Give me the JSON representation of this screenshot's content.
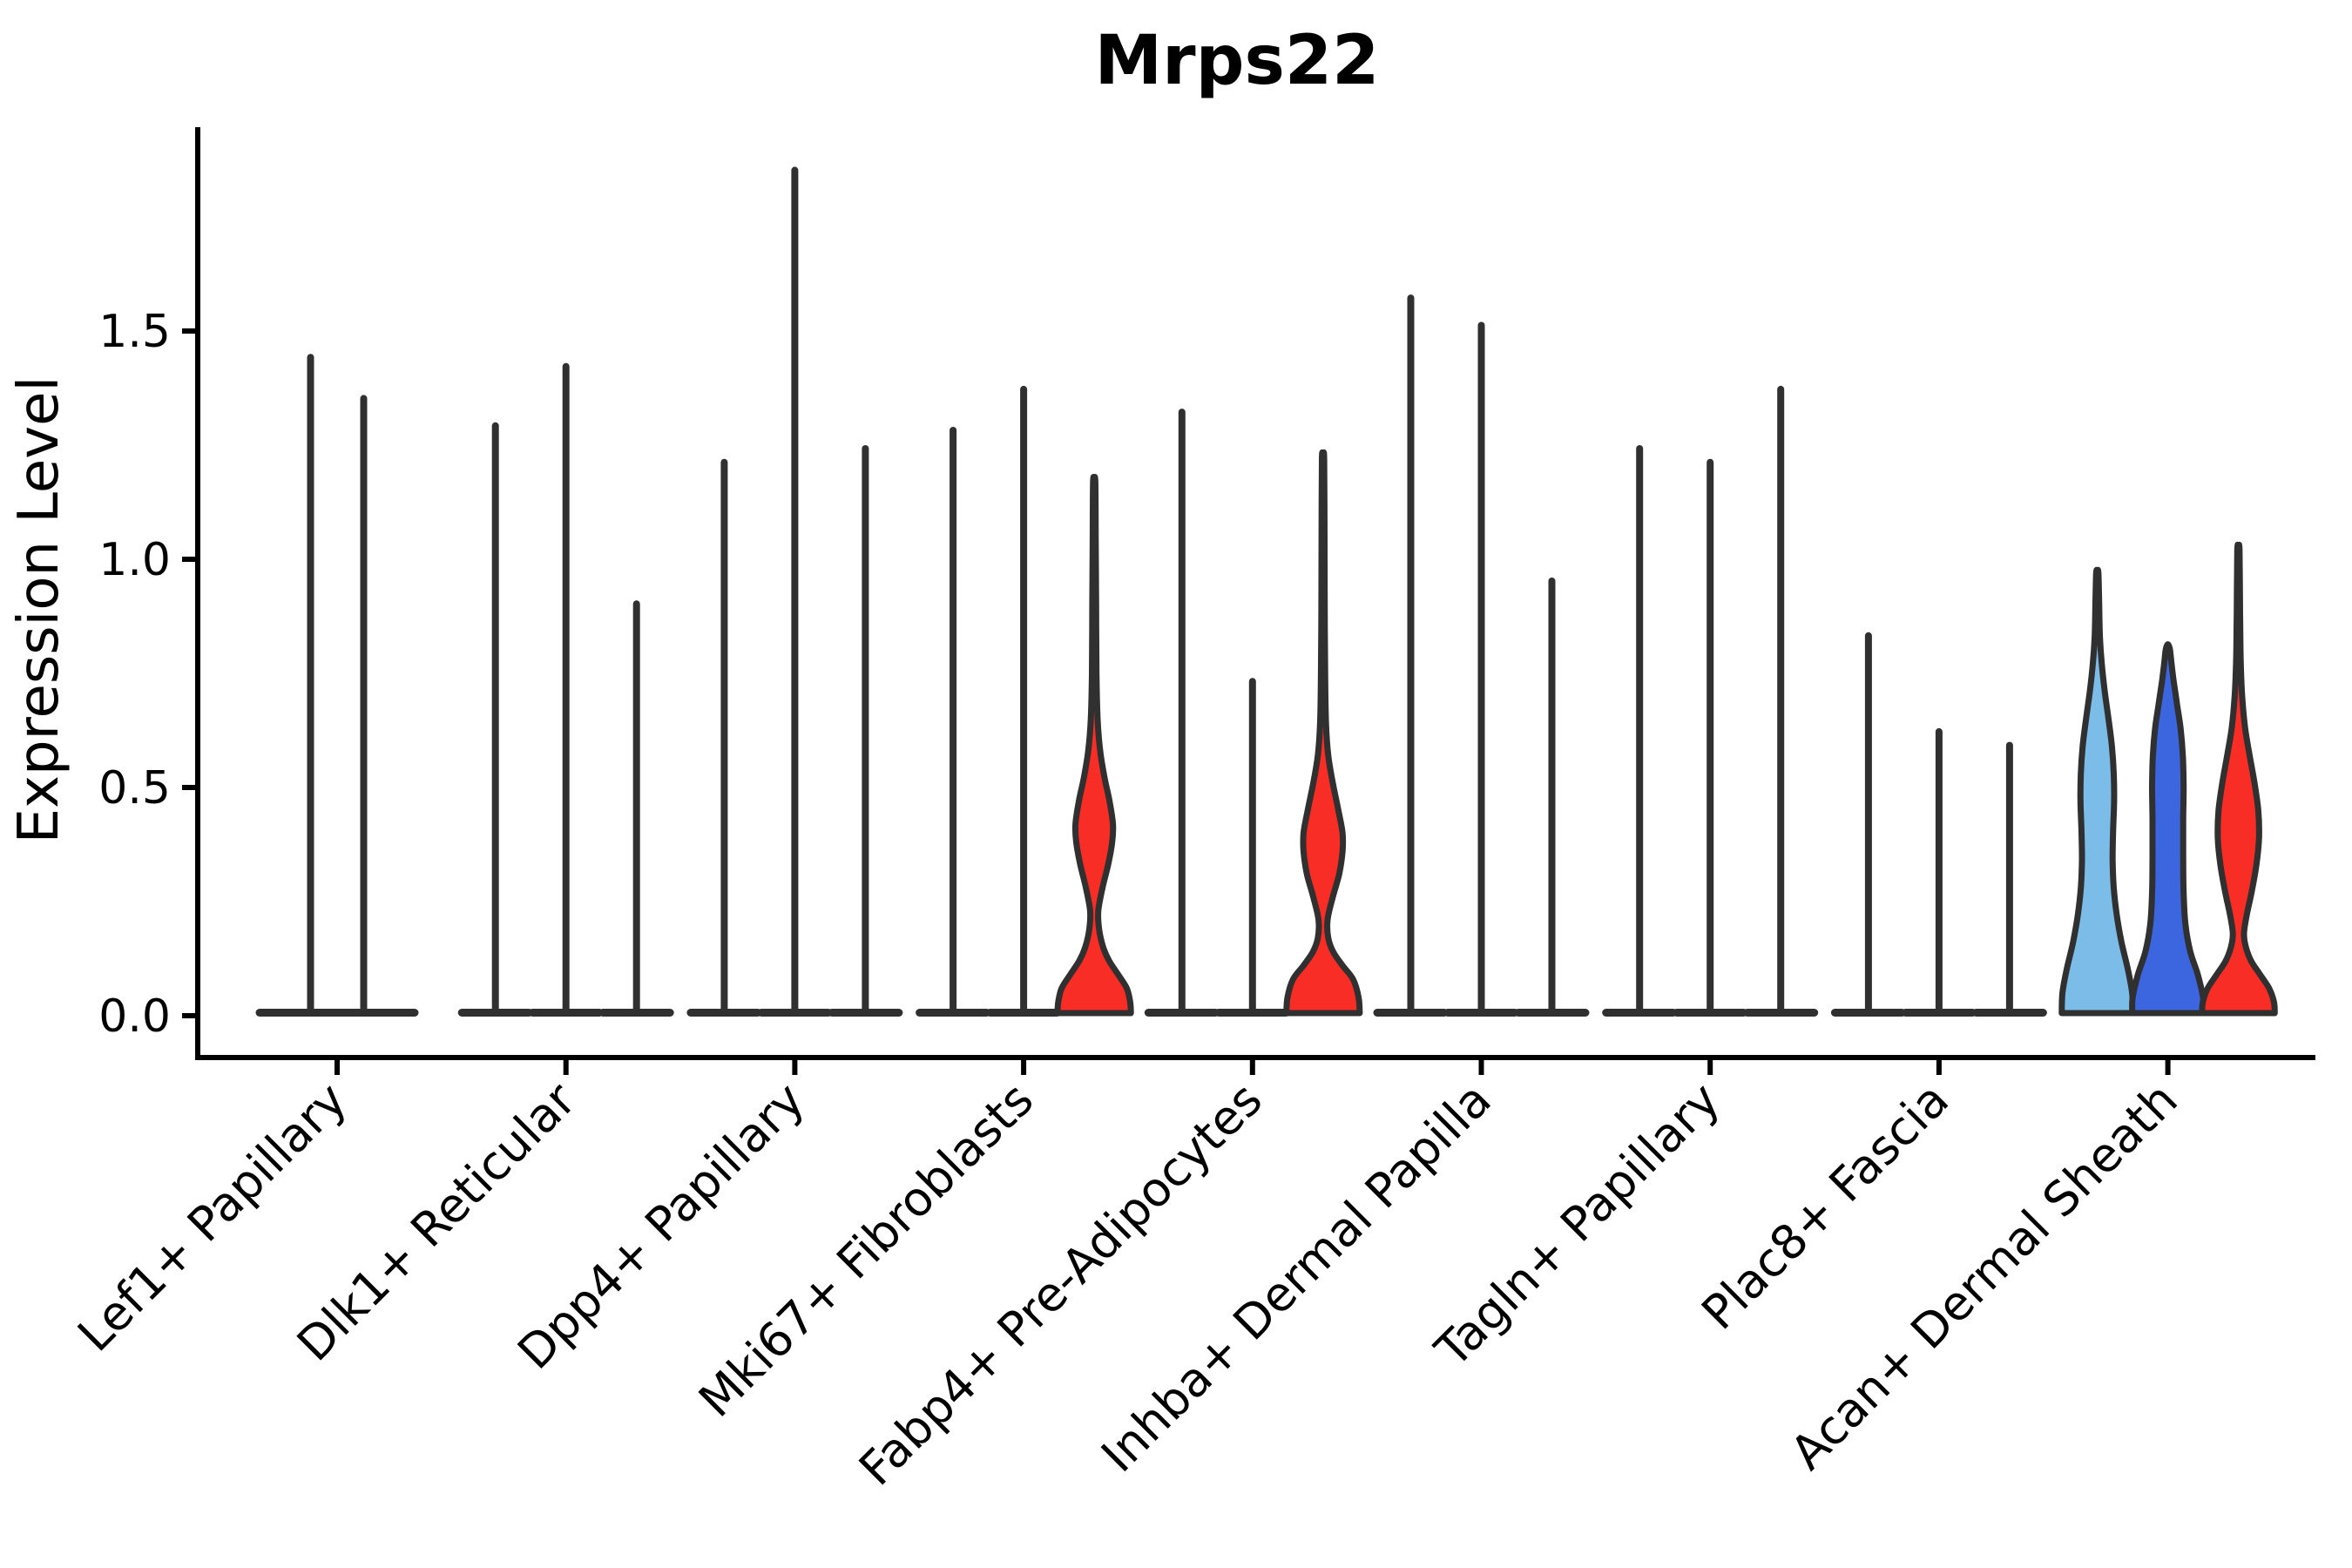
{
  "chart_data": {
    "type": "violin",
    "title": "Mrps22",
    "ylabel": "Expression Level",
    "ytick_labels": [
      "0.0",
      "0.5",
      "1.0",
      "1.5"
    ],
    "yticks": [
      0.0,
      0.5,
      1.0,
      1.5
    ],
    "ylim": [
      0,
      1.95
    ],
    "grid": false,
    "legend": "none",
    "categories": [
      "Lef1+ Papillary",
      "Dlk1+ Reticular",
      "Dpp4+ Papillary",
      "Mki67+ Fibroblasts",
      "Fabp4+ Pre-Adipocytes",
      "Inhba+ Dermal Papilla",
      "Tagln+ Papillary",
      "Plac8+ Fascia",
      "Acan+ Dermal Sheath"
    ],
    "colors": {
      "outline": "#303030",
      "red": "#F72D26",
      "light_blue": "#7CBCE8",
      "dark_blue": "#3B66E0",
      "background": "#FFFFFF",
      "text": "#000000"
    },
    "groups": [
      {
        "category": "Lef1+ Papillary",
        "violins": [
          {
            "shape": "spike",
            "max": 1.45,
            "color": "outline"
          },
          {
            "shape": "spike",
            "max": 1.36,
            "color": "outline"
          }
        ]
      },
      {
        "category": "Dlk1+ Reticular",
        "violins": [
          {
            "shape": "spike",
            "max": 1.3,
            "color": "outline"
          },
          {
            "shape": "spike",
            "max": 1.43,
            "color": "outline"
          },
          {
            "shape": "spike",
            "max": 0.91,
            "color": "outline"
          }
        ]
      },
      {
        "category": "Dpp4+ Papillary",
        "violins": [
          {
            "shape": "spike",
            "max": 1.22,
            "color": "outline"
          },
          {
            "shape": "spike",
            "max": 1.86,
            "color": "outline"
          },
          {
            "shape": "spike",
            "max": 1.25,
            "color": "outline"
          }
        ]
      },
      {
        "category": "Mki67+ Fibroblasts",
        "violins": [
          {
            "shape": "spike",
            "max": 1.29,
            "color": "outline"
          },
          {
            "shape": "spike",
            "max": 1.38,
            "color": "outline"
          },
          {
            "shape": "body",
            "max": 1.17,
            "color": "red",
            "profile": [
              [
                0,
                0.98
              ],
              [
                0.03,
                0.96
              ],
              [
                0.06,
                0.87
              ],
              [
                0.09,
                0.64
              ],
              [
                0.12,
                0.4
              ],
              [
                0.15,
                0.24
              ],
              [
                0.19,
                0.13
              ],
              [
                0.23,
                0.11
              ],
              [
                0.28,
                0.22
              ],
              [
                0.33,
                0.37
              ],
              [
                0.38,
                0.48
              ],
              [
                0.42,
                0.5
              ],
              [
                0.47,
                0.41
              ],
              [
                0.52,
                0.28
              ],
              [
                0.58,
                0.16
              ],
              [
                0.65,
                0.09
              ],
              [
                0.75,
                0.06
              ],
              [
                0.9,
                0.05
              ],
              [
                1.05,
                0.04
              ],
              [
                1.17,
                0.03
              ]
            ]
          }
        ]
      },
      {
        "category": "Fabp4+ Pre-Adipocytes",
        "violins": [
          {
            "shape": "spike",
            "max": 1.33,
            "color": "outline"
          },
          {
            "shape": "spike",
            "max": 0.74,
            "color": "outline"
          },
          {
            "shape": "body",
            "max": 1.22,
            "color": "red",
            "profile": [
              [
                0,
                0.98
              ],
              [
                0.04,
                0.95
              ],
              [
                0.08,
                0.8
              ],
              [
                0.11,
                0.52
              ],
              [
                0.14,
                0.27
              ],
              [
                0.17,
                0.14
              ],
              [
                0.21,
                0.12
              ],
              [
                0.26,
                0.26
              ],
              [
                0.31,
                0.43
              ],
              [
                0.36,
                0.52
              ],
              [
                0.4,
                0.52
              ],
              [
                0.45,
                0.41
              ],
              [
                0.51,
                0.26
              ],
              [
                0.57,
                0.14
              ],
              [
                0.64,
                0.08
              ],
              [
                0.75,
                0.055
              ],
              [
                0.9,
                0.045
              ],
              [
                1.05,
                0.04
              ],
              [
                1.22,
                0.03
              ]
            ]
          }
        ]
      },
      {
        "category": "Inhba+ Dermal Papilla",
        "violins": [
          {
            "shape": "spike",
            "max": 1.58,
            "color": "outline"
          },
          {
            "shape": "spike",
            "max": 1.52,
            "color": "outline"
          },
          {
            "shape": "spike",
            "max": 0.96,
            "color": "outline"
          }
        ]
      },
      {
        "category": "Tagln+ Papillary",
        "violins": [
          {
            "shape": "spike",
            "max": 1.25,
            "color": "outline"
          },
          {
            "shape": "spike",
            "max": 1.22,
            "color": "outline"
          },
          {
            "shape": "spike",
            "max": 1.38,
            "color": "outline"
          }
        ]
      },
      {
        "category": "Plac8+ Fascia",
        "violins": [
          {
            "shape": "spike",
            "max": 0.84,
            "color": "outline"
          },
          {
            "shape": "spike",
            "max": 0.63,
            "color": "outline"
          },
          {
            "shape": "spike",
            "max": 0.6,
            "color": "outline"
          }
        ]
      },
      {
        "category": "Acan+ Dermal Sheath",
        "violins": [
          {
            "shape": "body",
            "max": 0.97,
            "color": "light_blue",
            "profile": [
              [
                0,
                0.95
              ],
              [
                0.05,
                0.93
              ],
              [
                0.1,
                0.82
              ],
              [
                0.16,
                0.65
              ],
              [
                0.22,
                0.52
              ],
              [
                0.28,
                0.44
              ],
              [
                0.34,
                0.41
              ],
              [
                0.4,
                0.42
              ],
              [
                0.47,
                0.45
              ],
              [
                0.53,
                0.44
              ],
              [
                0.59,
                0.39
              ],
              [
                0.65,
                0.3
              ],
              [
                0.71,
                0.2
              ],
              [
                0.77,
                0.12
              ],
              [
                0.83,
                0.07
              ],
              [
                0.9,
                0.05
              ],
              [
                0.97,
                0.03
              ]
            ]
          },
          {
            "shape": "body",
            "max": 0.81,
            "color": "dark_blue",
            "profile": [
              [
                0,
                0.95
              ],
              [
                0.04,
                0.94
              ],
              [
                0.09,
                0.8
              ],
              [
                0.14,
                0.6
              ],
              [
                0.2,
                0.47
              ],
              [
                0.27,
                0.42
              ],
              [
                0.35,
                0.41
              ],
              [
                0.43,
                0.41
              ],
              [
                0.5,
                0.42
              ],
              [
                0.57,
                0.4
              ],
              [
                0.63,
                0.34
              ],
              [
                0.68,
                0.25
              ],
              [
                0.73,
                0.16
              ],
              [
                0.77,
                0.1
              ],
              [
                0.8,
                0.06
              ],
              [
                0.81,
                0.03
              ]
            ]
          },
          {
            "shape": "body",
            "max": 1.02,
            "color": "red",
            "profile": [
              [
                0,
                0.97
              ],
              [
                0.03,
                0.95
              ],
              [
                0.06,
                0.82
              ],
              [
                0.09,
                0.58
              ],
              [
                0.12,
                0.34
              ],
              [
                0.15,
                0.2
              ],
              [
                0.18,
                0.15
              ],
              [
                0.22,
                0.22
              ],
              [
                0.27,
                0.35
              ],
              [
                0.33,
                0.48
              ],
              [
                0.39,
                0.55
              ],
              [
                0.45,
                0.53
              ],
              [
                0.51,
                0.43
              ],
              [
                0.57,
                0.3
              ],
              [
                0.63,
                0.18
              ],
              [
                0.7,
                0.1
              ],
              [
                0.78,
                0.06
              ],
              [
                0.88,
                0.045
              ],
              [
                1.02,
                0.03
              ]
            ]
          }
        ]
      }
    ]
  }
}
